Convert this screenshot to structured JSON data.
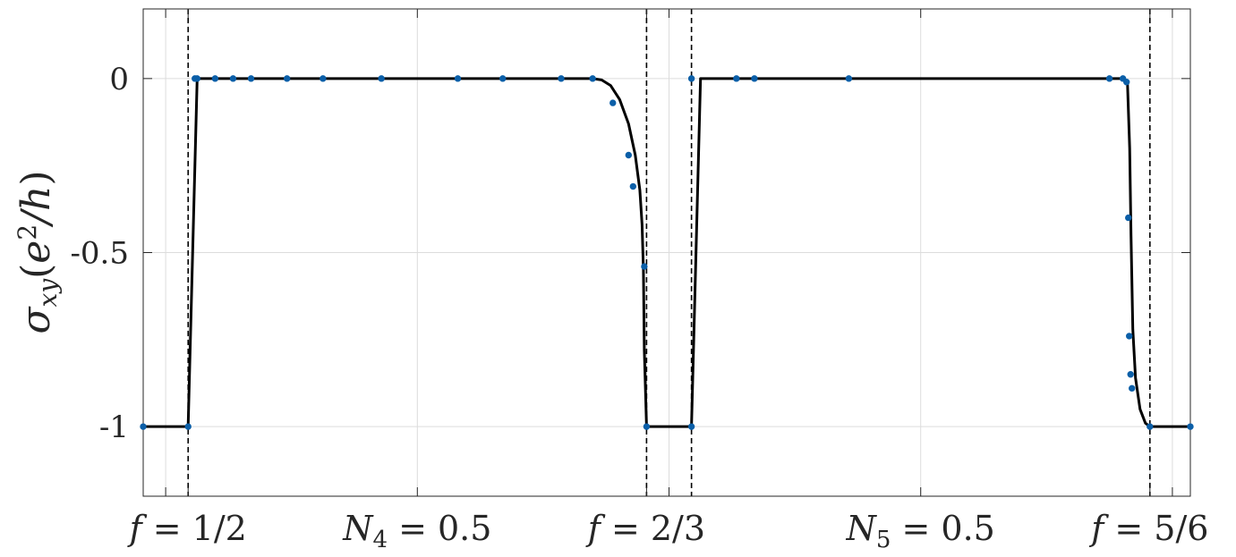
{
  "chart_data": {
    "type": "line",
    "title": "",
    "xlabel": "",
    "ylabel": {
      "symbol": "σ",
      "subscript": "xy",
      "open": "(",
      "e": "e",
      "superscript": "2",
      "slash": "/h",
      "close": ")"
    },
    "ylim": [
      -1.2,
      0.2
    ],
    "xlim": [
      0,
      23.3
    ],
    "y_ticks": [
      {
        "value": 0,
        "label": "0"
      },
      {
        "value": -0.5,
        "label": "-0.5"
      },
      {
        "value": -1,
        "label": "-1"
      }
    ],
    "x_ticks": [
      {
        "value": 1.0,
        "label": "f = 1/2",
        "var": "f",
        "sub": "",
        "eq": " = ",
        "num": "1/2"
      },
      {
        "value": 6.1,
        "label": "N4 = 0.5",
        "var": "N",
        "sub": "4",
        "eq": " = ",
        "num": "0.5"
      },
      {
        "value": 11.2,
        "label": "f = 2/3",
        "var": "f",
        "sub": "",
        "eq": " = ",
        "num": "2/3"
      },
      {
        "value": 17.3,
        "label": "N5 = 0.5",
        "var": "N",
        "sub": "5",
        "eq": " = ",
        "num": "0.5"
      },
      {
        "value": 22.4,
        "label": "f = 5/6",
        "var": "f",
        "sub": "",
        "eq": " = ",
        "num": "5/6"
      }
    ],
    "minor_grid_x": [
      0.5,
      11.7,
      22.9
    ],
    "dashed_verticals": [
      1.0,
      11.2,
      12.2,
      22.4
    ],
    "grid": true,
    "series": [
      {
        "curve": [
          [
            0,
            -1
          ],
          [
            1.0,
            -1
          ],
          [
            1.2,
            0
          ],
          [
            10.0,
            0
          ],
          [
            10.2,
            -0.004
          ],
          [
            10.4,
            -0.02
          ],
          [
            10.6,
            -0.06
          ],
          [
            10.8,
            -0.13
          ],
          [
            10.95,
            -0.22
          ],
          [
            11.05,
            -0.32
          ],
          [
            11.1,
            -0.42
          ],
          [
            11.13,
            -0.55
          ],
          [
            11.15,
            -0.78
          ],
          [
            11.2,
            -1
          ],
          [
            12.2,
            -1
          ],
          [
            12.4,
            0
          ],
          [
            21.8,
            0
          ],
          [
            21.9,
            -0.01
          ],
          [
            21.95,
            -0.2
          ],
          [
            21.98,
            -0.45
          ],
          [
            22.02,
            -0.72
          ],
          [
            22.08,
            -0.86
          ],
          [
            22.18,
            -0.95
          ],
          [
            22.3,
            -0.99
          ],
          [
            22.4,
            -1
          ],
          [
            23.3,
            -1
          ]
        ],
        "points": [
          [
            0,
            -1
          ],
          [
            1.0,
            -1
          ],
          [
            1.15,
            0
          ],
          [
            1.2,
            0
          ],
          [
            1.6,
            0
          ],
          [
            2.0,
            0
          ],
          [
            2.4,
            0
          ],
          [
            3.2,
            0
          ],
          [
            4.0,
            0
          ],
          [
            5.3,
            0
          ],
          [
            7.0,
            0
          ],
          [
            8.0,
            0
          ],
          [
            9.3,
            0
          ],
          [
            10.0,
            0
          ],
          [
            10.45,
            -0.07
          ],
          [
            10.8,
            -0.22
          ],
          [
            10.9,
            -0.31
          ],
          [
            11.15,
            -0.54
          ],
          [
            11.2,
            -1
          ],
          [
            12.2,
            -1
          ],
          [
            12.2,
            0
          ],
          [
            13.2,
            0
          ],
          [
            13.6,
            0
          ],
          [
            15.7,
            0
          ],
          [
            21.5,
            0
          ],
          [
            21.8,
            0
          ],
          [
            21.88,
            -0.01
          ],
          [
            21.92,
            -0.4
          ],
          [
            21.94,
            -0.74
          ],
          [
            21.97,
            -0.85
          ],
          [
            22.0,
            -0.89
          ],
          [
            22.4,
            -1
          ],
          [
            23.3,
            -1
          ]
        ]
      }
    ]
  }
}
